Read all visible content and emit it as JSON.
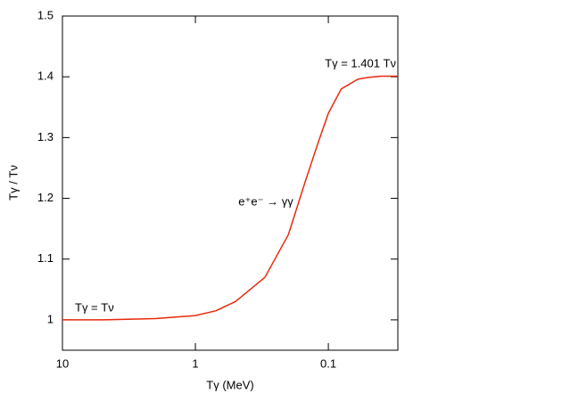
{
  "chart_data": {
    "type": "line",
    "x_label": "Tγ (MeV)",
    "y_label": "Tγ / Tν",
    "annotations": [
      "Tγ = 1.401 Tν",
      "e⁺e⁻ → γγ",
      "Tγ = Tν"
    ],
    "x": [
      10,
      5,
      2,
      1,
      0.7,
      0.5,
      0.3,
      0.2,
      0.15,
      0.12,
      0.1,
      0.08,
      0.06,
      0.05,
      0.04,
      0.03
    ],
    "series": [
      {
        "color": "#e8290b",
        "values": [
          1.0,
          1.0,
          1.002,
          1.007,
          1.015,
          1.03,
          1.07,
          1.14,
          1.226,
          1.29,
          1.34,
          1.38,
          1.396,
          1.399,
          1.401,
          1.401
        ]
      }
    ],
    "xlim": [
      10,
      0.03
    ],
    "xticks": [
      10,
      1,
      0.1
    ],
    "xlog": true,
    "ylim": [
      0.95,
      1.5
    ],
    "yticks": [
      1,
      1.1,
      1.2,
      1.3,
      1.4,
      1.5
    ]
  }
}
